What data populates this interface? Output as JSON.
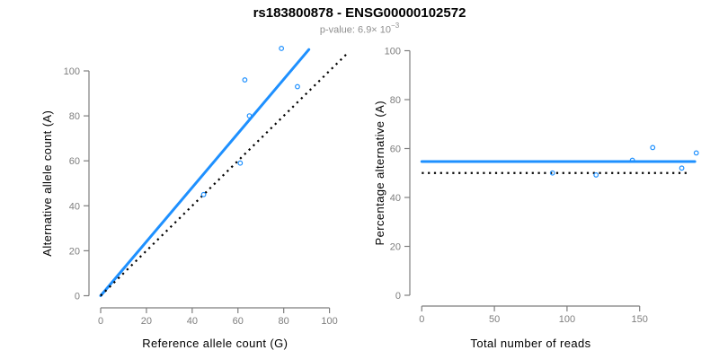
{
  "header": {
    "title": "rs183800878 - ENSG00000102572",
    "subtitle_main": "p-value: 6.9× 10",
    "subtitle_exponent": "−3"
  },
  "colors": {
    "fit_line_blue": "#1E90FF",
    "reference_line_black": "#000000",
    "axis_gray": "#7e7e7e",
    "tick_label_gray": "#7e7e7e",
    "axis_title_black": "#000000",
    "subtitle_gray": "#8e8e8e"
  },
  "chart_data": [
    {
      "type": "scatter",
      "position": "left",
      "title": "",
      "xlabel": "Reference allele count (G)",
      "ylabel": "Alternative allele count (A)",
      "xlim": [
        0,
        110
      ],
      "ylim": [
        0,
        110
      ],
      "xticks": [
        0,
        20,
        40,
        60,
        80,
        100
      ],
      "yticks": [
        0,
        20,
        40,
        60,
        80,
        100
      ],
      "grid": false,
      "legend": null,
      "points": [
        {
          "x": 45,
          "y": 45
        },
        {
          "x": 61,
          "y": 59
        },
        {
          "x": 63,
          "y": 96
        },
        {
          "x": 65,
          "y": 80
        },
        {
          "x": 79,
          "y": 110
        },
        {
          "x": 86,
          "y": 93
        }
      ],
      "lines": [
        {
          "name": "fitted-allelic-ratio-line",
          "style": "solid",
          "color": "#1E90FF",
          "width": 3,
          "from": {
            "x": 0,
            "y": 0
          },
          "to": {
            "x": 91,
            "y": 109.5
          }
        },
        {
          "name": "identity-line",
          "style": "dotted",
          "color": "#000000",
          "width": 2.2,
          "from": {
            "x": 0,
            "y": 0
          },
          "to": {
            "x": 108,
            "y": 108
          }
        }
      ]
    },
    {
      "type": "scatter",
      "position": "right",
      "title": "",
      "xlabel": "Total number of reads",
      "ylabel": "Percentage alternative (A)",
      "xlim": [
        0,
        190
      ],
      "ylim": [
        0,
        100
      ],
      "xticks": [
        0,
        50,
        100,
        150
      ],
      "yticks": [
        0,
        20,
        40,
        60,
        80,
        100
      ],
      "grid": false,
      "legend": null,
      "points": [
        {
          "x": 90,
          "y": 50.0
        },
        {
          "x": 120,
          "y": 49.2
        },
        {
          "x": 145,
          "y": 55.2
        },
        {
          "x": 159,
          "y": 60.4
        },
        {
          "x": 179,
          "y": 52.0
        },
        {
          "x": 189,
          "y": 58.2
        }
      ],
      "lines": [
        {
          "name": "fitted-percentage-line",
          "style": "solid",
          "color": "#1E90FF",
          "width": 3,
          "from": {
            "x": 0,
            "y": 54.7
          },
          "to": {
            "x": 188,
            "y": 54.7
          }
        },
        {
          "name": "expected-50pct-line",
          "style": "dotted",
          "color": "#000000",
          "width": 2.2,
          "from": {
            "x": 0,
            "y": 50
          },
          "to": {
            "x": 184,
            "y": 50
          }
        }
      ]
    }
  ]
}
